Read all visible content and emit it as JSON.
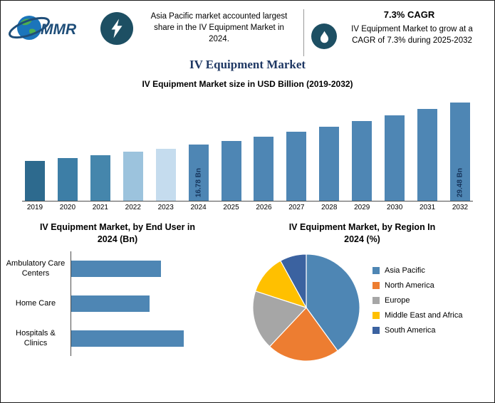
{
  "theme": {
    "title_navy": "#1F3864",
    "icon_background": "#1D4F63",
    "bar_blue": "#4E86B4",
    "value_label_navy": "#17365D"
  },
  "header": {
    "logo_text": "MMR",
    "highlight_text": "Asia Pacific market accounted largest share in the IV Equipment Market in 2024.",
    "cagr_title": "7.3% CAGR",
    "cagr_text": "IV Equipment Market to grow at a CAGR of 7.3% during 2025-2032"
  },
  "page_title": "IV Equipment Market",
  "chart_data": [
    {
      "type": "bar",
      "title": "IV Equipment Market size in USD Billion (2019-2032)",
      "categories": [
        "2019",
        "2020",
        "2021",
        "2022",
        "2023",
        "2024",
        "2025",
        "2026",
        "2027",
        "2028",
        "2029",
        "2030",
        "2031",
        "2032"
      ],
      "values": [
        11.9,
        12.8,
        13.7,
        14.7,
        15.6,
        16.78,
        18.0,
        19.3,
        20.7,
        22.2,
        23.8,
        25.6,
        27.5,
        29.48
      ],
      "unit": "USD Bn",
      "ylim": [
        0,
        32
      ],
      "grid": false,
      "point_labels": {
        "2024": "16.78 Bn",
        "2032": "29.48 Bn"
      },
      "bar_colors": [
        "#2D6A8E",
        "#3D7EA6",
        "#4586AC",
        "#9CC3DD",
        "#C5DCEE",
        "#4E86B4",
        "#4E86B4",
        "#4E86B4",
        "#4E86B4",
        "#4E86B4",
        "#4E86B4",
        "#4E86B4",
        "#4E86B4",
        "#4E86B4"
      ]
    },
    {
      "type": "bar-horizontal",
      "title": "IV Equipment Market, by End User in 2024 (Bn)",
      "categories": [
        "Ambulatory Care Centers",
        "Home Care",
        "Hospitals & Clinics"
      ],
      "values": [
        5.5,
        4.8,
        6.9
      ],
      "color": "#4E86B4"
    },
    {
      "type": "pie",
      "title": "IV Equipment Market, by Region In 2024 (%)",
      "labels": [
        "Asia Pacific",
        "North America",
        "Europe",
        "Middle East and Africa",
        "South America"
      ],
      "values": [
        40,
        22,
        18,
        12,
        8
      ],
      "colors": [
        "#4E86B4",
        "#ED7D31",
        "#A6A6A6",
        "#FFC000",
        "#3B62A0"
      ],
      "legend_position": "right"
    }
  ]
}
